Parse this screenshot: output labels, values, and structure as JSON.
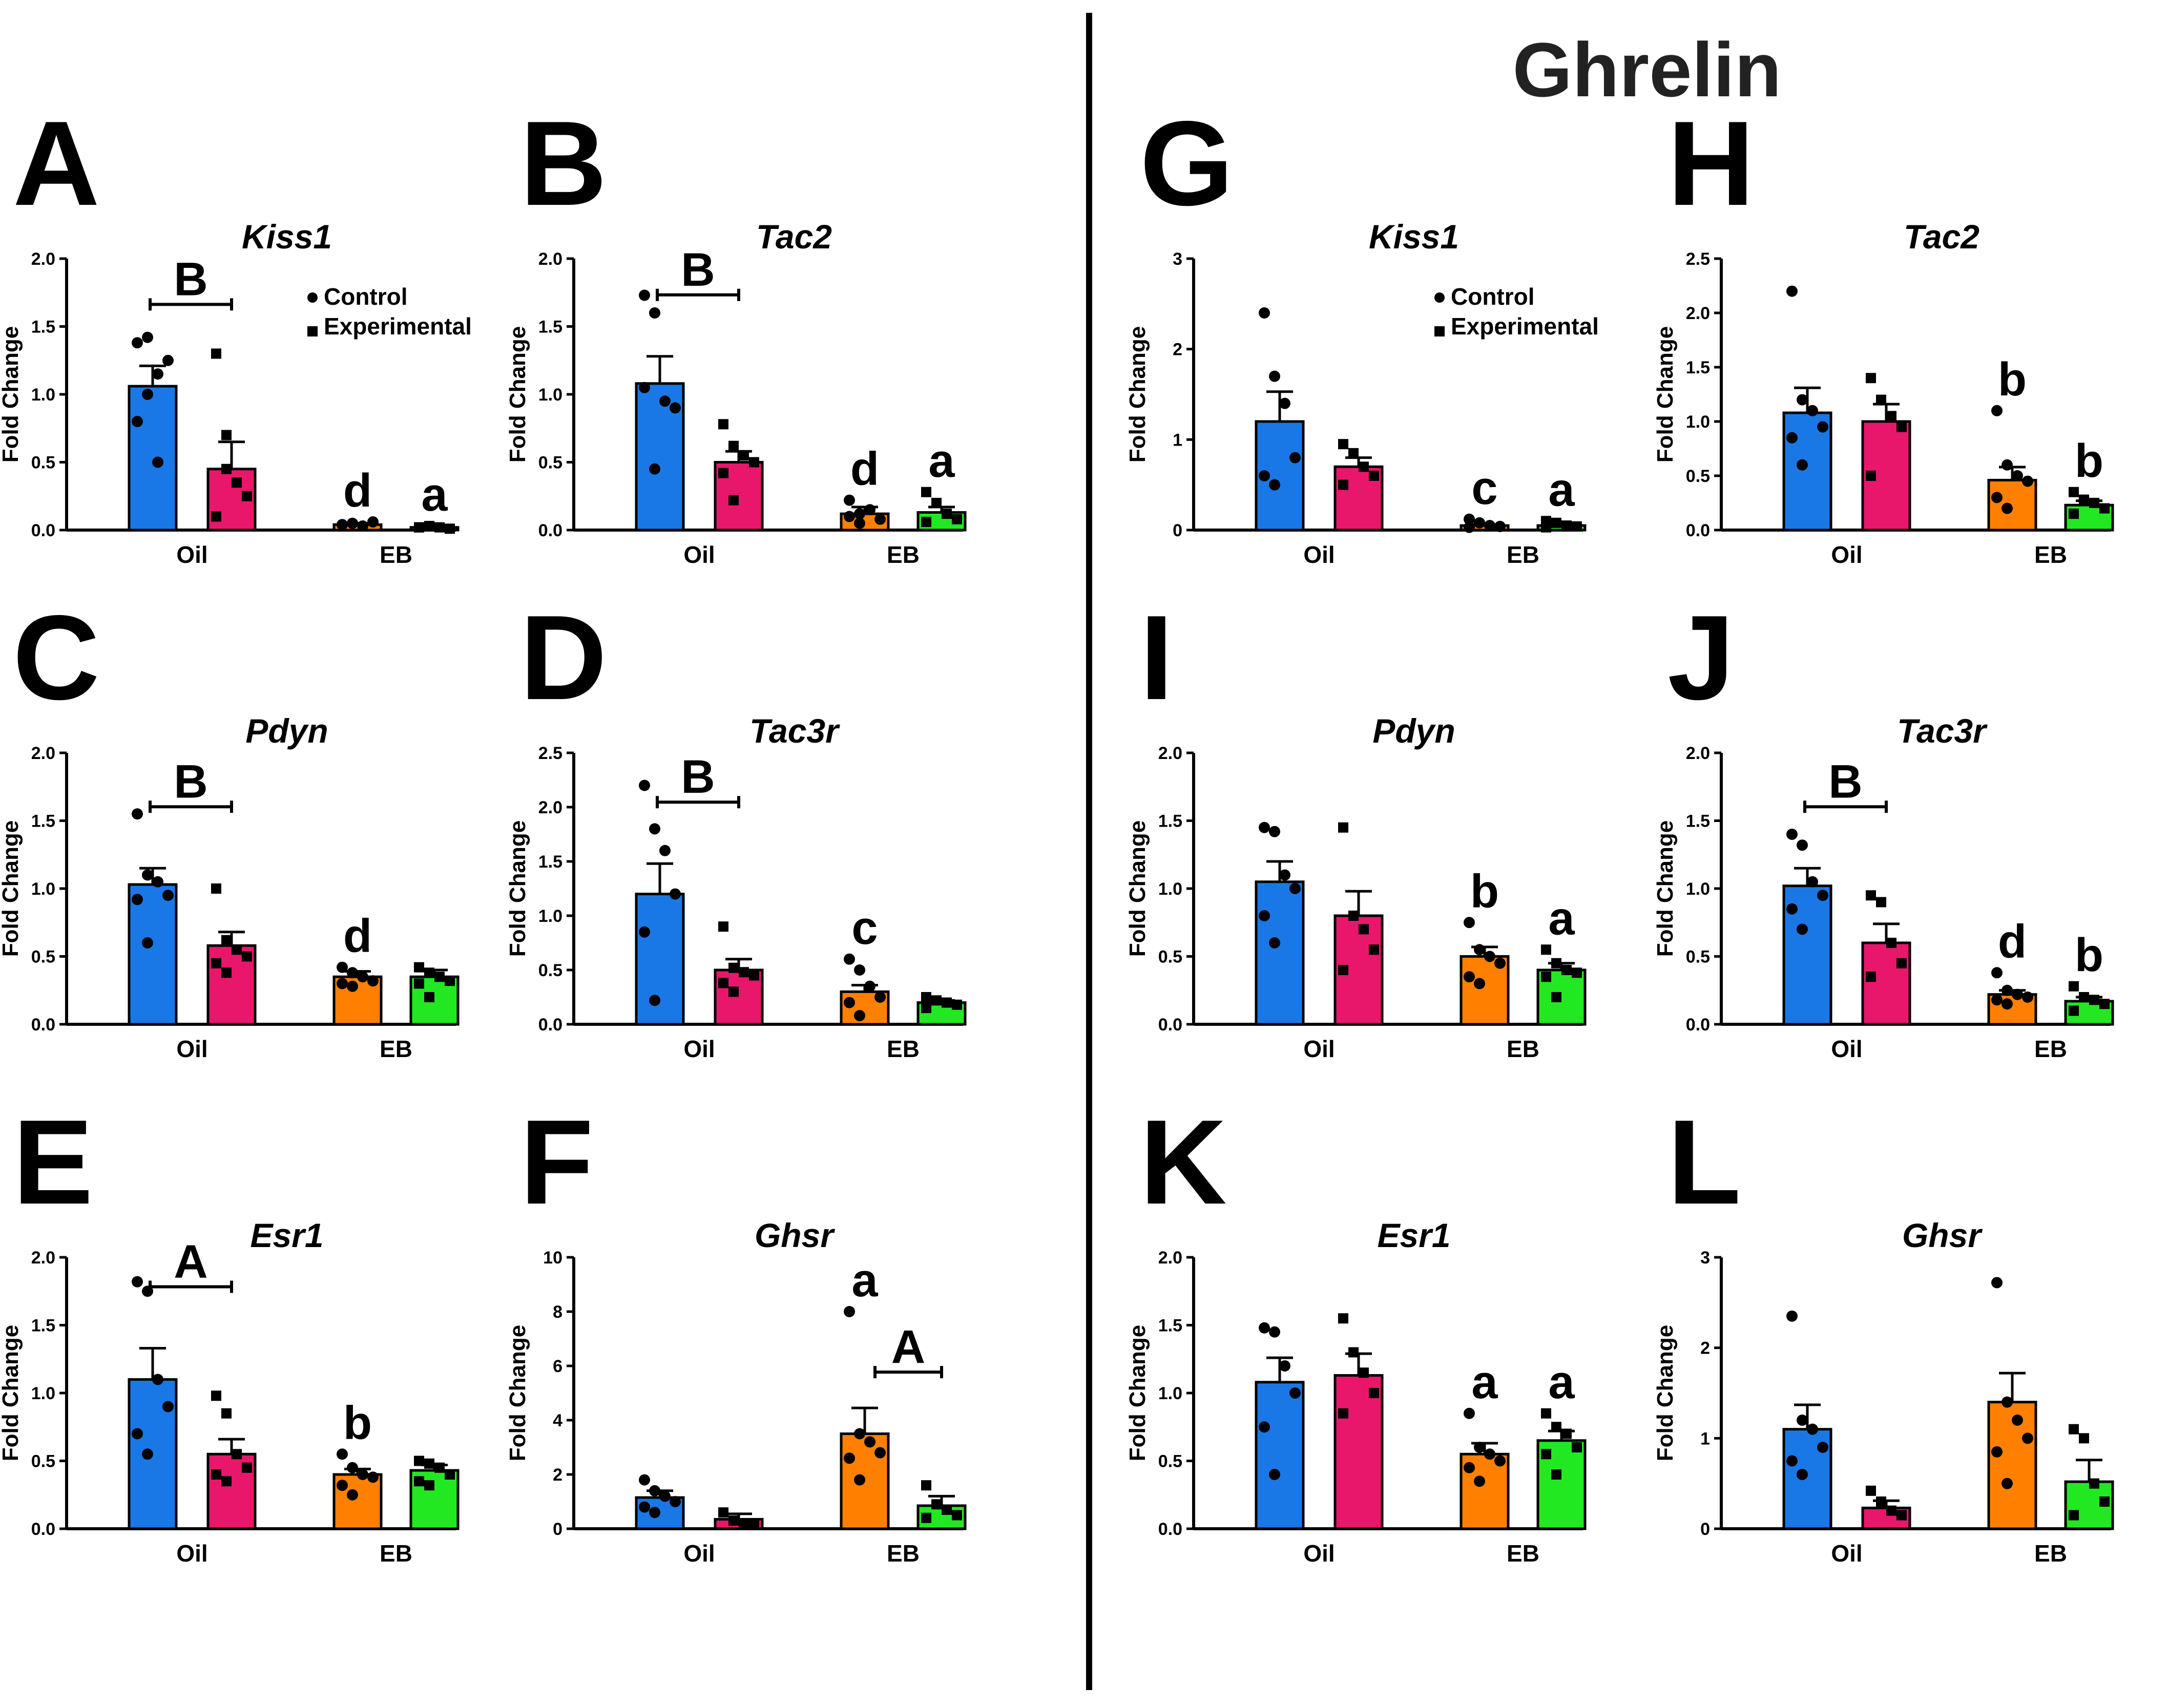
{
  "figure_title": "Ghrelin",
  "colors": {
    "oil_control": "#1a78e6",
    "oil_experimental": "#e8176b",
    "eb_control": "#ff8000",
    "eb_experimental": "#22e822"
  },
  "legend": {
    "control": "Control",
    "experimental": "Experimental"
  },
  "chart_data": [
    {
      "type": "bar",
      "panel": "A",
      "title": "Kiss1",
      "ylabel": "Fold Change",
      "categories": [
        "Oil",
        "EB"
      ],
      "ylim": [
        0,
        2.0
      ],
      "yticks": [
        "0.0",
        "0.5",
        "1.0",
        "1.5",
        "2.0"
      ],
      "series": [
        {
          "name": "Control",
          "values": [
            1.06,
            0.04
          ],
          "sem": [
            0.15,
            0.01
          ]
        },
        {
          "name": "Experimental",
          "values": [
            0.45,
            0.02
          ],
          "sem": [
            0.2,
            0.01
          ]
        }
      ],
      "points": {
        "oil_control": [
          0.8,
          1.0,
          1.15,
          1.25,
          1.38,
          1.42,
          0.5
        ],
        "oil_experimental": [
          1.3,
          0.45,
          0.35,
          0.25,
          0.1,
          0.7
        ],
        "eb_control": [
          0.04,
          0.05,
          0.03,
          0.06,
          0.04,
          0.05
        ],
        "eb_experimental": [
          0.02,
          0.03,
          0.02,
          0.01,
          0.02
        ]
      },
      "letters": [
        "d",
        "a"
      ],
      "bracket": "B",
      "legend": true
    },
    {
      "type": "bar",
      "panel": "B",
      "title": "Tac2",
      "ylabel": "Fold Change",
      "categories": [
        "Oil",
        "EB"
      ],
      "ylim": [
        0,
        2.0
      ],
      "yticks": [
        "0.0",
        "0.5",
        "1.0",
        "1.5",
        "2.0"
      ],
      "series": [
        {
          "name": "Control",
          "values": [
            1.08,
            0.12
          ],
          "sem": [
            0.2,
            0.05
          ]
        },
        {
          "name": "Experimental",
          "values": [
            0.5,
            0.13
          ],
          "sem": [
            0.08,
            0.04
          ]
        }
      ],
      "points": {
        "oil_control": [
          1.73,
          1.6,
          0.95,
          0.9,
          1.05,
          0.45
        ],
        "oil_experimental": [
          0.78,
          0.62,
          0.55,
          0.5,
          0.42,
          0.22
        ],
        "eb_control": [
          0.22,
          0.12,
          0.15,
          0.08,
          0.1,
          0.05
        ],
        "eb_experimental": [
          0.28,
          0.2,
          0.12,
          0.08,
          0.06
        ]
      },
      "letters": [
        "d",
        "a"
      ],
      "bracket": "B",
      "legend": false
    },
    {
      "type": "bar",
      "panel": "C",
      "title": "Pdyn",
      "ylabel": "Fold Change",
      "categories": [
        "Oil",
        "EB"
      ],
      "ylim": [
        0,
        2.0
      ],
      "yticks": [
        "0.0",
        "0.5",
        "1.0",
        "1.5",
        "2.0"
      ],
      "series": [
        {
          "name": "Control",
          "values": [
            1.03,
            0.35
          ],
          "sem": [
            0.12,
            0.04
          ]
        },
        {
          "name": "Experimental",
          "values": [
            0.58,
            0.35
          ],
          "sem": [
            0.1,
            0.05
          ]
        }
      ],
      "points": {
        "oil_control": [
          1.55,
          1.1,
          1.05,
          0.95,
          0.92,
          0.6
        ],
        "oil_experimental": [
          1.0,
          0.62,
          0.55,
          0.5,
          0.45,
          0.38
        ],
        "eb_control": [
          0.42,
          0.38,
          0.35,
          0.32,
          0.3,
          0.28
        ],
        "eb_experimental": [
          0.42,
          0.38,
          0.35,
          0.32,
          0.3,
          0.2
        ]
      },
      "letters": [
        "d",
        ""
      ],
      "bracket": "B",
      "legend": false
    },
    {
      "type": "bar",
      "panel": "D",
      "title": "Tac3r",
      "ylabel": "Fold Change",
      "categories": [
        "Oil",
        "EB"
      ],
      "ylim": [
        0,
        2.5
      ],
      "yticks": [
        "0.0",
        "0.5",
        "1.0",
        "1.5",
        "2.0",
        "2.5"
      ],
      "series": [
        {
          "name": "Control",
          "values": [
            1.2,
            0.3
          ],
          "sem": [
            0.28,
            0.06
          ]
        },
        {
          "name": "Experimental",
          "values": [
            0.5,
            0.2
          ],
          "sem": [
            0.1,
            0.02
          ]
        }
      ],
      "points": {
        "oil_control": [
          2.2,
          1.8,
          1.6,
          1.2,
          0.85,
          0.22
        ],
        "oil_experimental": [
          0.9,
          0.52,
          0.48,
          0.45,
          0.38,
          0.3
        ],
        "eb_control": [
          0.6,
          0.5,
          0.35,
          0.25,
          0.2,
          0.08
        ],
        "eb_experimental": [
          0.25,
          0.22,
          0.2,
          0.18,
          0.15
        ]
      },
      "letters": [
        "c",
        ""
      ],
      "bracket": "B",
      "legend": false
    },
    {
      "type": "bar",
      "panel": "E",
      "title": "Esr1",
      "ylabel": "Fold Change",
      "categories": [
        "Oil",
        "EB"
      ],
      "ylim": [
        0,
        2.0
      ],
      "yticks": [
        "0.0",
        "0.5",
        "1.0",
        "1.5",
        "2.0"
      ],
      "series": [
        {
          "name": "Control",
          "values": [
            1.1,
            0.4
          ],
          "sem": [
            0.23,
            0.04
          ]
        },
        {
          "name": "Experimental",
          "values": [
            0.55,
            0.43
          ],
          "sem": [
            0.11,
            0.04
          ]
        }
      ],
      "points": {
        "oil_control": [
          1.82,
          1.75,
          1.1,
          0.9,
          0.7,
          0.55
        ],
        "oil_experimental": [
          0.98,
          0.85,
          0.55,
          0.45,
          0.4,
          0.35
        ],
        "eb_control": [
          0.55,
          0.45,
          0.4,
          0.38,
          0.32,
          0.25
        ],
        "eb_experimental": [
          0.5,
          0.48,
          0.45,
          0.4,
          0.35,
          0.32
        ]
      },
      "letters": [
        "b",
        ""
      ],
      "bracket": "A",
      "legend": false
    },
    {
      "type": "bar",
      "panel": "F",
      "title": "Ghsr",
      "ylabel": "Fold Change",
      "categories": [
        "Oil",
        "EB"
      ],
      "ylim": [
        0,
        10
      ],
      "yticks": [
        "0",
        "2",
        "4",
        "6",
        "8",
        "10"
      ],
      "series": [
        {
          "name": "Control",
          "values": [
            1.15,
            3.5
          ],
          "sem": [
            0.25,
            0.95
          ]
        },
        {
          "name": "Experimental",
          "values": [
            0.35,
            0.85
          ],
          "sem": [
            0.2,
            0.35
          ]
        }
      ],
      "points": {
        "oil_control": [
          1.8,
          1.4,
          1.2,
          1.0,
          0.8,
          0.6
        ],
        "oil_experimental": [
          0.6,
          0.3,
          0.2,
          0.15
        ],
        "eb_control": [
          8.0,
          3.5,
          3.2,
          2.8,
          2.6,
          1.8
        ],
        "eb_experimental": [
          1.6,
          0.9,
          0.7,
          0.5,
          0.4
        ]
      },
      "letters": [
        "a",
        ""
      ],
      "bracket": "A",
      "legend": false
    },
    {
      "type": "bar",
      "panel": "G",
      "title": "Kiss1",
      "ylabel": "Fold Change",
      "categories": [
        "Oil",
        "EB"
      ],
      "ylim": [
        0,
        3
      ],
      "yticks": [
        "0",
        "1",
        "2",
        "3"
      ],
      "series": [
        {
          "name": "Control",
          "values": [
            1.2,
            0.05
          ],
          "sem": [
            0.33,
            0.01
          ]
        },
        {
          "name": "Experimental",
          "values": [
            0.7,
            0.05
          ],
          "sem": [
            0.1,
            0.01
          ]
        }
      ],
      "points": {
        "oil_control": [
          2.4,
          1.7,
          1.4,
          0.8,
          0.6,
          0.5
        ],
        "oil_experimental": [
          0.95,
          0.85,
          0.7,
          0.6,
          0.5
        ],
        "eb_control": [
          0.12,
          0.08,
          0.05,
          0.04,
          0.03
        ],
        "eb_experimental": [
          0.1,
          0.08,
          0.05,
          0.04,
          0.03
        ]
      },
      "letters": [
        "c",
        "a"
      ],
      "bracket": "",
      "legend": true
    },
    {
      "type": "bar",
      "panel": "H",
      "title": "Tac2",
      "ylabel": "Fold Change",
      "categories": [
        "Oil",
        "EB"
      ],
      "ylim": [
        0,
        2.5
      ],
      "yticks": [
        "0.0",
        "0.5",
        "1.0",
        "1.5",
        "2.0",
        "2.5"
      ],
      "series": [
        {
          "name": "Control",
          "values": [
            1.08,
            0.46
          ],
          "sem": [
            0.23,
            0.12
          ]
        },
        {
          "name": "Experimental",
          "values": [
            1.0,
            0.23
          ],
          "sem": [
            0.16,
            0.04
          ]
        }
      ],
      "points": {
        "oil_control": [
          2.2,
          1.2,
          1.1,
          0.95,
          0.85,
          0.6
        ],
        "oil_experimental": [
          1.4,
          1.2,
          1.05,
          0.95,
          0.5
        ],
        "eb_control": [
          1.1,
          0.6,
          0.5,
          0.45,
          0.3,
          0.2
        ],
        "eb_experimental": [
          0.35,
          0.28,
          0.25,
          0.2,
          0.15
        ]
      },
      "letters": [
        "b",
        "b"
      ],
      "bracket": "",
      "legend": false
    },
    {
      "type": "bar",
      "panel": "I",
      "title": "Pdyn",
      "ylabel": "Fold Change",
      "categories": [
        "Oil",
        "EB"
      ],
      "ylim": [
        0,
        2.0
      ],
      "yticks": [
        "0.0",
        "0.5",
        "1.0",
        "1.5",
        "2.0"
      ],
      "series": [
        {
          "name": "Control",
          "values": [
            1.05,
            0.5
          ],
          "sem": [
            0.15,
            0.07
          ]
        },
        {
          "name": "Experimental",
          "values": [
            0.8,
            0.4
          ],
          "sem": [
            0.18,
            0.05
          ]
        }
      ],
      "points": {
        "oil_control": [
          1.45,
          1.42,
          1.1,
          1.0,
          0.8,
          0.6
        ],
        "oil_experimental": [
          1.45,
          0.8,
          0.7,
          0.55,
          0.4
        ],
        "eb_control": [
          0.75,
          0.55,
          0.5,
          0.45,
          0.35,
          0.3
        ],
        "eb_experimental": [
          0.55,
          0.45,
          0.4,
          0.38,
          0.35,
          0.2
        ]
      },
      "letters": [
        "b",
        "a"
      ],
      "bracket": "",
      "legend": false
    },
    {
      "type": "bar",
      "panel": "J",
      "title": "Tac3r",
      "ylabel": "Fold Change",
      "categories": [
        "Oil",
        "EB"
      ],
      "ylim": [
        0,
        2.0
      ],
      "yticks": [
        "0.0",
        "0.5",
        "1.0",
        "1.5",
        "2.0"
      ],
      "series": [
        {
          "name": "Control",
          "values": [
            1.02,
            0.22
          ],
          "sem": [
            0.13,
            0.03
          ]
        },
        {
          "name": "Experimental",
          "values": [
            0.6,
            0.17
          ],
          "sem": [
            0.14,
            0.03
          ]
        }
      ],
      "points": {
        "oil_control": [
          1.4,
          1.32,
          1.05,
          0.95,
          0.85,
          0.7
        ],
        "oil_experimental": [
          0.95,
          0.9,
          0.6,
          0.45,
          0.35
        ],
        "eb_control": [
          0.38,
          0.25,
          0.22,
          0.2,
          0.18,
          0.15
        ],
        "eb_experimental": [
          0.28,
          0.2,
          0.18,
          0.15,
          0.1
        ]
      },
      "letters": [
        "d",
        "b"
      ],
      "bracket": "B",
      "legend": false
    },
    {
      "type": "bar",
      "panel": "K",
      "title": "Esr1",
      "ylabel": "Fold Change",
      "categories": [
        "Oil",
        "EB"
      ],
      "ylim": [
        0,
        2.0
      ],
      "yticks": [
        "0.0",
        "0.5",
        "1.0",
        "1.5",
        "2.0"
      ],
      "series": [
        {
          "name": "Control",
          "values": [
            1.08,
            0.55
          ],
          "sem": [
            0.18,
            0.08
          ]
        },
        {
          "name": "Experimental",
          "values": [
            1.13,
            0.65
          ],
          "sem": [
            0.16,
            0.07
          ]
        }
      ],
      "points": {
        "oil_control": [
          1.48,
          1.45,
          1.2,
          1.0,
          0.75,
          0.4
        ],
        "oil_experimental": [
          1.55,
          1.3,
          1.15,
          1.0,
          0.85
        ],
        "eb_control": [
          0.85,
          0.6,
          0.55,
          0.5,
          0.45,
          0.35
        ],
        "eb_experimental": [
          0.85,
          0.75,
          0.7,
          0.6,
          0.55,
          0.4
        ]
      },
      "letters": [
        "a",
        "a"
      ],
      "bracket": "",
      "legend": false
    },
    {
      "type": "bar",
      "panel": "L",
      "title": "Ghsr",
      "ylabel": "Fold Change",
      "categories": [
        "Oil",
        "EB"
      ],
      "ylim": [
        0,
        3
      ],
      "yticks": [
        "0",
        "1",
        "2",
        "3"
      ],
      "series": [
        {
          "name": "Control",
          "values": [
            1.1,
            1.4
          ],
          "sem": [
            0.27,
            0.32
          ]
        },
        {
          "name": "Experimental",
          "values": [
            0.23,
            0.52
          ],
          "sem": [
            0.08,
            0.24
          ]
        }
      ],
      "points": {
        "oil_control": [
          2.35,
          1.2,
          1.1,
          0.9,
          0.75,
          0.6
        ],
        "oil_experimental": [
          0.42,
          0.3,
          0.2,
          0.15
        ],
        "eb_control": [
          2.72,
          1.4,
          1.2,
          1.0,
          0.85,
          0.5
        ],
        "eb_experimental": [
          1.1,
          1.0,
          0.5,
          0.3,
          0.15
        ]
      },
      "letters": [
        "",
        ""
      ],
      "bracket": "",
      "legend": false
    }
  ]
}
